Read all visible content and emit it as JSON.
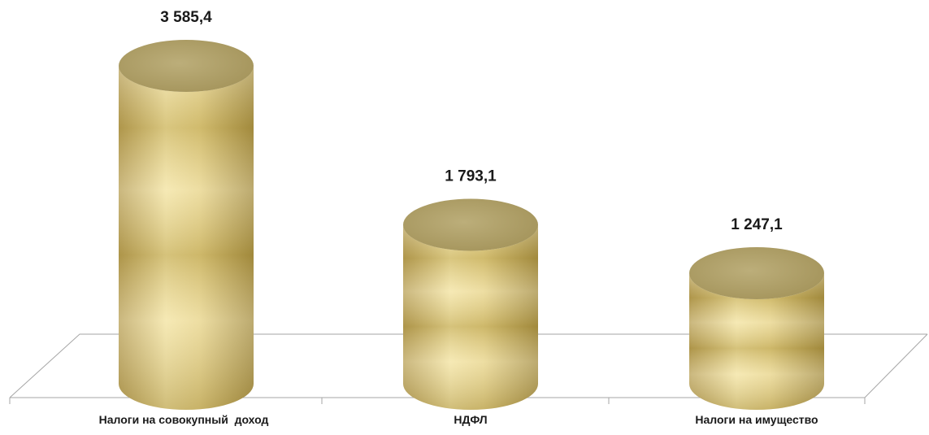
{
  "chart_data": {
    "type": "bar",
    "categories": [
      "Налоги на совокупный  доход",
      "НДФЛ",
      "Налоги на имущество"
    ],
    "series": [
      {
        "values": [
          3585.4,
          1793.1,
          1247.1
        ]
      }
    ],
    "data_labels": [
      "3 585,4",
      "1 793,1",
      "1 247,1"
    ],
    "title": "",
    "xlabel": "",
    "ylabel": "",
    "ylim": [
      0,
      3800
    ],
    "grid": false,
    "legend": "none",
    "style": "3d-cylinder",
    "colors": {
      "bar_light": "#f7eaa3",
      "bar_mid": "#e6cf7d",
      "bar_dark": "#b39a4d",
      "bar_top": "#b5a772",
      "floor": "#9a9a9a"
    }
  }
}
